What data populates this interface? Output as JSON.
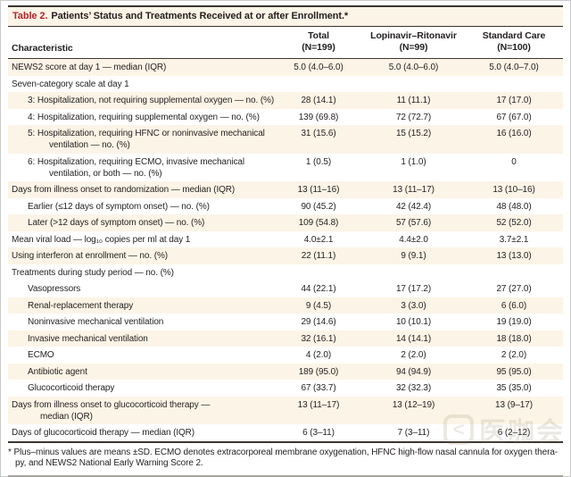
{
  "title": {
    "tag": "Table 2.",
    "text": "Patients’ Status and Treatments Received at or after Enrollment.*"
  },
  "header": {
    "characteristic": "Characteristic",
    "columns": [
      {
        "name": "Total",
        "n": "(N=199)"
      },
      {
        "name": "Lopinavir–Ritonavir",
        "n": "(N=99)"
      },
      {
        "name": "Standard Care",
        "n": "(N=100)"
      }
    ]
  },
  "rows": [
    {
      "label": "NEWS2 score at day 1 — median (IQR)",
      "indent": 0,
      "shade": "cream",
      "values": [
        "5.0 (4.0–6.0)",
        "5.0 (4.0–6.0)",
        "5.0 (4.0–7.0)"
      ]
    },
    {
      "label": "Seven-category scale at day 1",
      "indent": 0,
      "shade": "white",
      "values": [
        "",
        "",
        ""
      ]
    },
    {
      "label": "3: Hospitalization, not requiring supplemental oxygen — no. (%)",
      "indent": 1,
      "shade": "cream",
      "values": [
        "28 (14.1)",
        "11 (11.1)",
        "17 (17.0)"
      ]
    },
    {
      "label": "4: Hospitalization, requiring supplemental oxygen — no. (%)",
      "indent": 1,
      "shade": "white",
      "values": [
        "139 (69.8)",
        "72 (72.7)",
        "67 (67.0)"
      ]
    },
    {
      "label": "5: Hospitalization, requiring HFNC or noninvasive mechanical",
      "label2": "ventilation — no. (%)",
      "indent": 1,
      "shade": "cream",
      "values": [
        "31 (15.6)",
        "15 (15.2)",
        "16 (16.0)"
      ]
    },
    {
      "label": "6: Hospitalization, requiring ECMO, invasive mechanical",
      "label2": "ventilation, or both — no. (%)",
      "indent": 1,
      "shade": "white",
      "values": [
        "1 (0.5)",
        "1 (1.0)",
        "0"
      ]
    },
    {
      "label": "Days from illness onset to randomization — median (IQR)",
      "indent": 0,
      "shade": "cream",
      "values": [
        "13 (11–16)",
        "13 (11–17)",
        "13 (10–16)"
      ]
    },
    {
      "label": "Earlier (≤12 days of symptom onset) — no. (%)",
      "indent": 1,
      "shade": "white",
      "values": [
        "90 (45.2)",
        "42 (42.4)",
        "48 (48.0)"
      ]
    },
    {
      "label": "Later (>12 days of symptom onset) — no. (%)",
      "indent": 1,
      "shade": "cream",
      "values": [
        "109 (54.8)",
        "57 (57.6)",
        "52 (52.0)"
      ]
    },
    {
      "label": "Mean viral load — log₁₀ copies per ml at day 1",
      "indent": 0,
      "shade": "white",
      "values": [
        "4.0±2.1",
        "4.4±2.0",
        "3.7±2.1"
      ]
    },
    {
      "label": "Using interferon at enrollment — no. (%)",
      "indent": 0,
      "shade": "cream",
      "values": [
        "22 (11.1)",
        "9 (9.1)",
        "13 (13.0)"
      ]
    },
    {
      "label": "Treatments during study period — no. (%)",
      "indent": 0,
      "shade": "white",
      "values": [
        "",
        "",
        ""
      ]
    },
    {
      "label": "Vasopressors",
      "indent": 1,
      "shade": "white",
      "values": [
        "44 (22.1)",
        "17 (17.2)",
        "27 (27.0)"
      ]
    },
    {
      "label": "Renal-replacement therapy",
      "indent": 1,
      "shade": "cream",
      "values": [
        "9 (4.5)",
        "3 (3.0)",
        "6 (6.0)"
      ]
    },
    {
      "label": "Noninvasive mechanical ventilation",
      "indent": 1,
      "shade": "white",
      "values": [
        "29 (14.6)",
        "10 (10.1)",
        "19 (19.0)"
      ]
    },
    {
      "label": "Invasive mechanical ventilation",
      "indent": 1,
      "shade": "cream",
      "values": [
        "32 (16.1)",
        "14 (14.1)",
        "18 (18.0)"
      ]
    },
    {
      "label": "ECMO",
      "indent": 1,
      "shade": "white",
      "values": [
        "4 (2.0)",
        "2 (2.0)",
        "2 (2.0)"
      ]
    },
    {
      "label": "Antibiotic agent",
      "indent": 1,
      "shade": "cream",
      "values": [
        "189 (95.0)",
        "94 (94.9)",
        "95 (95.0)"
      ]
    },
    {
      "label": "Glucocorticoid therapy",
      "indent": 1,
      "shade": "white",
      "values": [
        "67 (33.7)",
        "32 (32.3)",
        "35 (35.0)"
      ]
    },
    {
      "label": "Days from illness onset to glucocorticoid therapy —",
      "label2": "median (IQR)",
      "indent": 0,
      "shade": "cream",
      "values": [
        "13 (11–17)",
        "13 (12–19)",
        "13 (9–17)"
      ]
    },
    {
      "label": "Days of glucocorticoid therapy — median (IQR)",
      "indent": 0,
      "shade": "white",
      "values": [
        "6 (3–11)",
        "7 (3–11)",
        "6 (2–12)"
      ]
    }
  ],
  "footnote": {
    "line1": "* Plus–minus values are means ±SD. ECMO denotes extracorporeal membrane oxygenation, HFNC high-flow nasal cannula for oxygen thera-",
    "line2": "py, and NEWS2 National Early Warning Score 2."
  },
  "watermark": {
    "icon_glyph": "<",
    "text": "医咖会"
  },
  "colors": {
    "accent_red": "#b52228",
    "row_cream": "#fcf4e6",
    "ink": "#231f20"
  }
}
